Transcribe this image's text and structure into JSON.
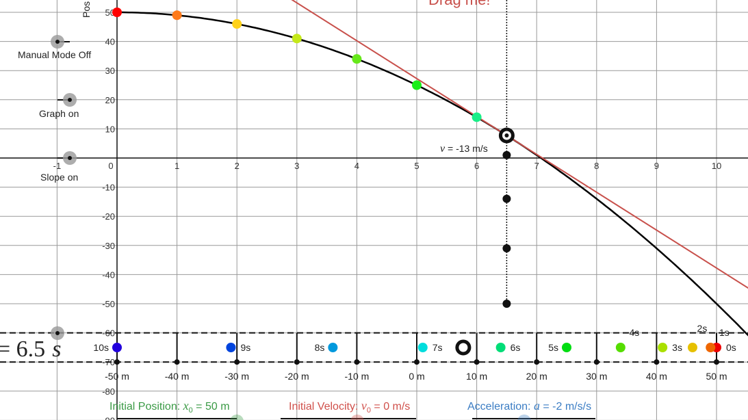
{
  "chart_data": {
    "type": "line",
    "ylabel": "Pos",
    "xlim": [
      -1.95,
      10.52
    ],
    "ylim": [
      -90,
      54
    ],
    "grid": true,
    "x_ticks": [
      -1,
      0,
      1,
      2,
      3,
      4,
      5,
      6,
      7,
      8,
      9,
      10
    ],
    "y_ticks": [
      50,
      40,
      30,
      20,
      10,
      -10,
      -20,
      -30,
      -40,
      -50,
      -60,
      -70,
      -80,
      -90
    ],
    "position_curve": {
      "formula": "x = 50 - t^2",
      "color": "#000000"
    },
    "tangent_line": {
      "t": 6.5,
      "position": 7.75,
      "slope": -13,
      "color": "#c8504b"
    },
    "sample_points": [
      {
        "t": 0,
        "y": 50,
        "color": "#ff0000"
      },
      {
        "t": 1,
        "y": 49,
        "color": "#ff7a1a"
      },
      {
        "t": 2,
        "y": 46,
        "color": "#ffd21a"
      },
      {
        "t": 3,
        "y": 41,
        "color": "#c4e81a"
      },
      {
        "t": 4,
        "y": 34,
        "color": "#66e81a"
      },
      {
        "t": 5,
        "y": 25,
        "color": "#1aee1a"
      },
      {
        "t": 6,
        "y": 14,
        "color": "#1aee88"
      }
    ],
    "future_points": [
      {
        "t": 6.5,
        "y": 1
      },
      {
        "t": 6.5,
        "y": -14
      },
      {
        "t": 6.5,
        "y": -31
      },
      {
        "t": 6.5,
        "y": -50
      }
    ],
    "current_time": 6.5
  },
  "labels": {
    "drag_me": "Drag me!",
    "velocity_var": "v",
    "velocity_text": " = -13 m/s",
    "time_readout": "= 6.5",
    "time_unit": "s",
    "manual_mode": "Manual Mode Off",
    "graph_toggle": "Graph on",
    "slope_toggle": "Slope on"
  },
  "track": {
    "ruler_labels": [
      "-50 m",
      "-40 m",
      "-30 m",
      "-20 m",
      "-10 m",
      "0 m",
      "10 m",
      "20 m",
      "30 m",
      "40 m",
      "50 m"
    ],
    "ruler_values": [
      -50,
      -40,
      -30,
      -20,
      -10,
      0,
      10,
      20,
      30,
      40,
      50
    ],
    "markers": [
      {
        "label": "0s",
        "pos": 50,
        "color": "#ee0000",
        "side": "right"
      },
      {
        "label": "1s",
        "pos": 49,
        "color": "#ee6600",
        "side": "top"
      },
      {
        "label": "2s",
        "pos": 46,
        "color": "#e6c000",
        "side": "top2"
      },
      {
        "label": "3s",
        "pos": 41,
        "color": "#aae000",
        "side": "right"
      },
      {
        "label": "4s",
        "pos": 34,
        "color": "#55dd00",
        "side": "top"
      },
      {
        "label": "5s",
        "pos": 25,
        "color": "#00dd11",
        "side": "left"
      },
      {
        "label": "6s",
        "pos": 14,
        "color": "#00dd77",
        "side": "right"
      },
      {
        "label": "7s",
        "pos": 1,
        "color": "#00dddd",
        "side": "right"
      },
      {
        "label": "8s",
        "pos": -14,
        "color": "#0099dd",
        "side": "left"
      },
      {
        "label": "9s",
        "pos": -31,
        "color": "#0044dd",
        "side": "right"
      },
      {
        "label": "10s",
        "pos": -50,
        "color": "#2200dd",
        "side": "left"
      }
    ],
    "current_position": 7.75
  },
  "controls": {
    "x0_label": "Initial Position: ",
    "x0_var": "x",
    "x0_sub": "0",
    "x0_value": " = 50 m",
    "x0_color": "#3a9a45",
    "v0_label": "Initial Velocity: ",
    "v0_var": "v",
    "v0_sub": "0",
    "v0_value": " = 0 m/s",
    "v0_color": "#d0504b",
    "a_label": "Acceleration: ",
    "a_var": "a",
    "a_value": " = -2 m/s/s",
    "a_color": "#3b7dc4"
  }
}
